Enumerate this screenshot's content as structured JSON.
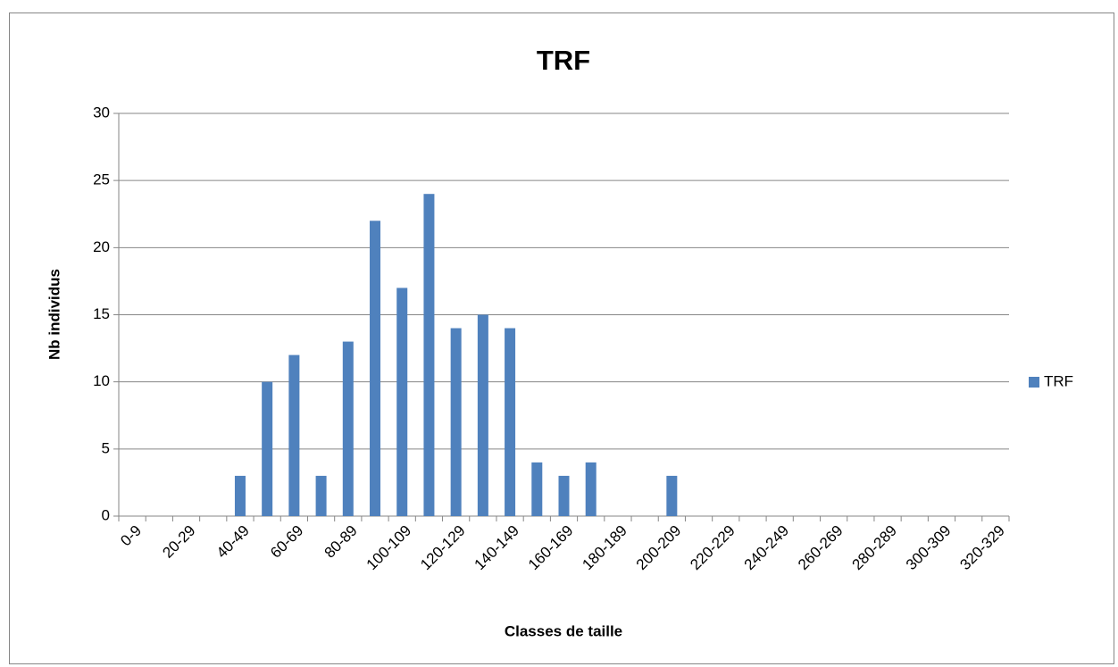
{
  "chart_data": {
    "type": "bar",
    "title": "TRF",
    "x_label": "Classes de taille",
    "y_label": "Nb individus",
    "categories": [
      "0-9",
      null,
      "20-29",
      null,
      "40-49",
      null,
      "60-69",
      null,
      "80-89",
      null,
      "100-109",
      null,
      "120-129",
      null,
      "140-149",
      null,
      "160-169",
      null,
      "180-189",
      null,
      "200-209",
      null,
      "220-229",
      null,
      "240-249",
      null,
      "260-269",
      null,
      "280-289",
      null,
      "300-309",
      null,
      "320-329"
    ],
    "series": [
      {
        "name": "TRF",
        "color": "#4f81bd",
        "values": [
          0,
          0,
          0,
          0,
          3,
          10,
          12,
          3,
          13,
          22,
          17,
          24,
          14,
          15,
          14,
          4,
          3,
          4,
          0,
          0,
          3,
          0,
          0,
          0,
          0,
          0,
          0,
          0,
          0,
          0,
          0,
          0,
          0
        ]
      }
    ],
    "ylim": [
      0,
      30
    ],
    "yticks": [
      0,
      5,
      10,
      15,
      20,
      25,
      30
    ],
    "grid": true,
    "legend": "right"
  }
}
